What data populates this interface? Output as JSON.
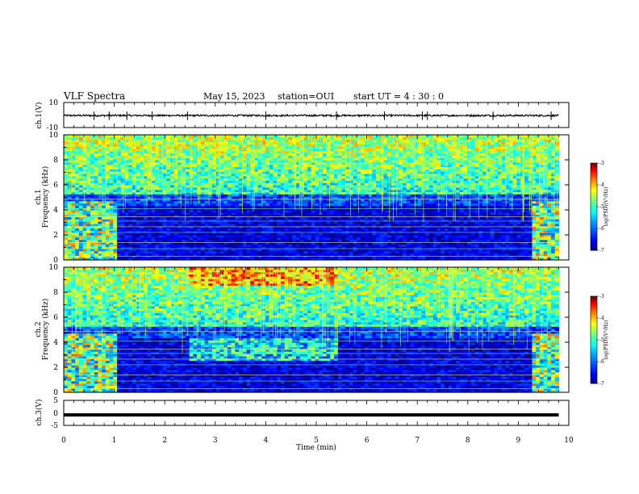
{
  "header": {
    "title": "VLF Spectra",
    "date": "May 15, 2023",
    "station": "station=OUI",
    "start": "start  UT =   4 : 30 : 0"
  },
  "chart_data": [
    {
      "type": "line",
      "panel": "ch1-waveform",
      "ylabel": "ch.1(V)",
      "ylim": [
        -10,
        10
      ],
      "yticks": [
        "10",
        "-10"
      ],
      "xlim": [
        0,
        10
      ],
      "baseline": -0.4,
      "noise_amplitude": 0.7,
      "spike_times": [
        0.6,
        0.9,
        1.25,
        1.75,
        2.45,
        4.0,
        5.4,
        6.35,
        7.1,
        7.2,
        8.5,
        9.65
      ],
      "color": "#000000"
    },
    {
      "type": "heatmap",
      "panel": "ch1-spectrogram",
      "ylabel_line1": "ch.1",
      "ylabel_line2": "Frequency (kHz)",
      "ylim": [
        0,
        10
      ],
      "yticks": [
        "0",
        "2",
        "4",
        "6",
        "8",
        "10"
      ],
      "xlim": [
        0,
        10
      ],
      "data_end_min": 9.8,
      "regimes": [
        {
          "from": 0.0,
          "to": 1.0,
          "level": "high-low-band"
        },
        {
          "from": 1.0,
          "to": 9.25,
          "level": "quiet"
        },
        {
          "from": 9.25,
          "to": 9.8,
          "level": "high-low-band"
        }
      ],
      "colorbar": {
        "label": "log(PSD)(V²/Hz)",
        "min": -7,
        "max": -3,
        "ticks": [
          "-3",
          "-4",
          "-5",
          "-6",
          "-7"
        ]
      }
    },
    {
      "type": "heatmap",
      "panel": "ch2-spectrogram",
      "ylabel_line1": "ch.2",
      "ylabel_line2": "Frequency (kHz)",
      "ylim": [
        0,
        10
      ],
      "yticks": [
        "0",
        "2",
        "4",
        "6",
        "8",
        "10"
      ],
      "xlim": [
        0,
        10
      ],
      "data_end_min": 9.8,
      "regimes": [
        {
          "from": 0.0,
          "to": 1.0,
          "level": "high-low-band"
        },
        {
          "from": 2.45,
          "to": 5.4,
          "level": "mid-band-enhanced"
        },
        {
          "from": 9.25,
          "to": 9.8,
          "level": "high-low-band"
        }
      ],
      "colorbar": {
        "label": "log(PSD)(V²/Hz)",
        "min": -7,
        "max": -3,
        "ticks": [
          "-3",
          "-4",
          "-5",
          "-6",
          "-7"
        ]
      }
    },
    {
      "type": "line",
      "panel": "ch3-waveform",
      "ylabel": "ch.3(V)",
      "ylim": [
        -5,
        5
      ],
      "yticks": [
        "5",
        "0",
        "-5"
      ],
      "xlim": [
        0,
        10
      ],
      "baseline": -0.8,
      "color": "#000000"
    }
  ],
  "x_axis": {
    "label": "Time (min)",
    "ticks": [
      "0",
      "1",
      "2",
      "3",
      "4",
      "5",
      "6",
      "7",
      "8",
      "9",
      "10"
    ]
  },
  "colors": {
    "jet": [
      "#00007f",
      "#0000ff",
      "#007fff",
      "#00ffff",
      "#7fff7f",
      "#ffff00",
      "#ff7f00",
      "#ff0000",
      "#7f0000"
    ]
  }
}
